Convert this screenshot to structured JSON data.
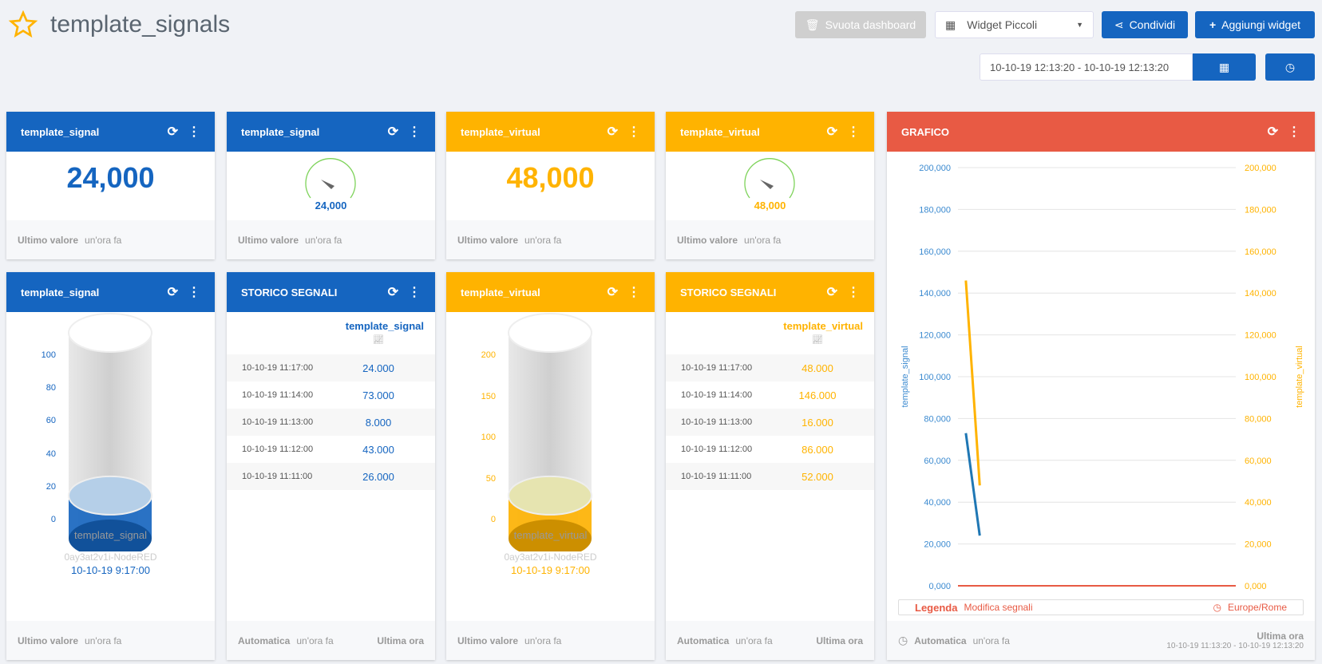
{
  "header": {
    "title": "template_signals",
    "icon": "star-icon",
    "buttons": {
      "clear": "Svuota dashboard",
      "widget_size": "Widget Piccoli",
      "share": "Condividi",
      "add": "Aggiungi widget"
    },
    "date_range": "10-10-19 12:13:20 - 10-10-19 12:13:20"
  },
  "colors": {
    "blue": "#1565c0",
    "yellow": "#ffb300",
    "red": "#e85a44"
  },
  "common": {
    "last_value": "Ultimo valore",
    "ago": "un'ora fa",
    "auto": "Automatica",
    "last_hour": "Ultima ora"
  },
  "widgets": [
    {
      "title": "template_signal",
      "value": "24,000"
    },
    {
      "title": "template_signal",
      "value": "24,000"
    },
    {
      "title": "template_virtual",
      "value": "48,000"
    },
    {
      "title": "template_virtual",
      "value": "48,000"
    }
  ],
  "tanks": [
    {
      "title": "template_signal",
      "ticks": [
        "100",
        "80",
        "60",
        "40",
        "20",
        "0"
      ],
      "max": 100,
      "level": 24,
      "name": "template_signal",
      "device": "0ay3at2v1i-NodeRED",
      "date": "10-10-19 9:17:00"
    },
    {
      "title": "template_virtual",
      "ticks": [
        "200",
        "150",
        "100",
        "50",
        "0"
      ],
      "max": 200,
      "level": 48,
      "name": "template_virtual",
      "device": "0ay3at2v1i-NodeRED",
      "date": "10-10-19 9:17:00"
    }
  ],
  "history": [
    {
      "title": "STORICO SEGNALI",
      "column": "template_signal",
      "rows": [
        [
          "10-10-19 11:17:00",
          "24.000"
        ],
        [
          "10-10-19 11:14:00",
          "73.000"
        ],
        [
          "10-10-19 11:13:00",
          "8.000"
        ],
        [
          "10-10-19 11:12:00",
          "43.000"
        ],
        [
          "10-10-19 11:11:00",
          "26.000"
        ]
      ]
    },
    {
      "title": "STORICO SEGNALI",
      "column": "template_virtual",
      "rows": [
        [
          "10-10-19 11:17:00",
          "48.000"
        ],
        [
          "10-10-19 11:14:00",
          "146.000"
        ],
        [
          "10-10-19 11:13:00",
          "16.000"
        ],
        [
          "10-10-19 11:12:00",
          "86.000"
        ],
        [
          "10-10-19 11:11:00",
          "52.000"
        ]
      ]
    }
  ],
  "grafico": {
    "title": "GRAFICO",
    "legend": "Legenda",
    "edit": "Modifica segnali",
    "timezone": "Europe/Rome",
    "footer_range": "10-10-19 11:13:20 - 10-10-19 12:13:20"
  },
  "chart_data": {
    "type": "line",
    "ylabel_left": "template_signal",
    "ylabel_right": "template_virtual",
    "yticks": [
      "0,000",
      "20,000",
      "40,000",
      "60,000",
      "80,000",
      "100,000",
      "120,000",
      "140,000",
      "160,000",
      "180,000",
      "200,000"
    ],
    "ylim": [
      0,
      200000
    ],
    "xlim": [
      "11:13:20",
      "12:13:20"
    ],
    "grid": true,
    "series": [
      {
        "name": "template_signal",
        "color": "#1f77b4",
        "x": [
          "11:14:00",
          "11:17:00"
        ],
        "y": [
          73000,
          24000
        ]
      },
      {
        "name": "template_virtual",
        "color": "#ffb300",
        "x": [
          "11:14:00",
          "11:17:00"
        ],
        "y": [
          146000,
          48000
        ]
      }
    ]
  }
}
